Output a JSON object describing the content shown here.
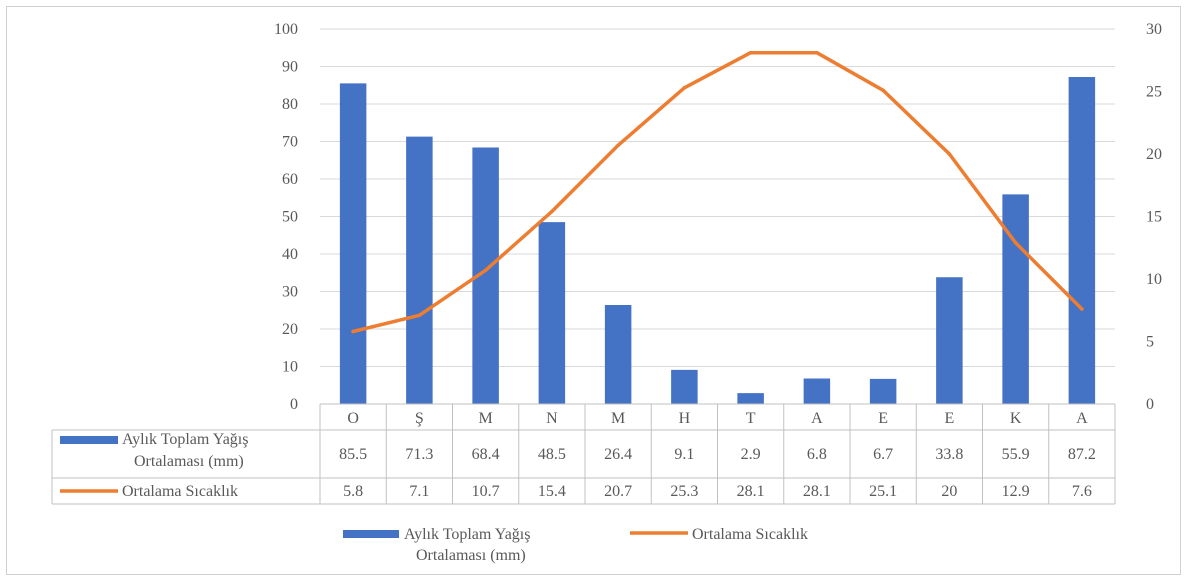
{
  "chart_data": {
    "type": "bar+line",
    "categories": [
      "O",
      "Ş",
      "M",
      "N",
      "M",
      "H",
      "T",
      "A",
      "E",
      "E",
      "K",
      "A"
    ],
    "series": [
      {
        "name_lines": [
          "Aylık Toplam Yağış",
          "Ortalaması (mm)"
        ],
        "type": "bar",
        "axis": "left",
        "color": "#4472C4",
        "values": [
          85.5,
          71.3,
          68.4,
          48.5,
          26.4,
          9.1,
          2.9,
          6.8,
          6.7,
          33.8,
          55.9,
          87.2
        ],
        "labels": [
          "85.5",
          "71.3",
          "68.4",
          "48.5",
          "26.4",
          "9.1",
          "2.9",
          "6.8",
          "6.7",
          "33.8",
          "55.9",
          "87.2"
        ]
      },
      {
        "name": "Ortalama Sıcaklık",
        "type": "line",
        "axis": "right",
        "color": "#ED7D31",
        "values": [
          5.8,
          7.1,
          10.7,
          15.4,
          20.7,
          25.3,
          28.1,
          28.1,
          25.1,
          20,
          12.9,
          7.6
        ],
        "labels": [
          "5.8",
          "7.1",
          "10.7",
          "15.4",
          "20.7",
          "25.3",
          "28.1",
          "28.1",
          "25.1",
          "20",
          "12.9",
          "7.6"
        ]
      }
    ],
    "y_left": {
      "ylim": [
        0,
        100
      ],
      "ticks": [
        "0",
        "10",
        "20",
        "30",
        "40",
        "50",
        "60",
        "70",
        "80",
        "90",
        "100"
      ]
    },
    "y_right": {
      "ylim": [
        0,
        30
      ],
      "ticks": [
        "0",
        "5",
        "10",
        "15",
        "20",
        "25",
        "30"
      ]
    },
    "grid": true,
    "data_table": true,
    "legend": "bottom"
  }
}
